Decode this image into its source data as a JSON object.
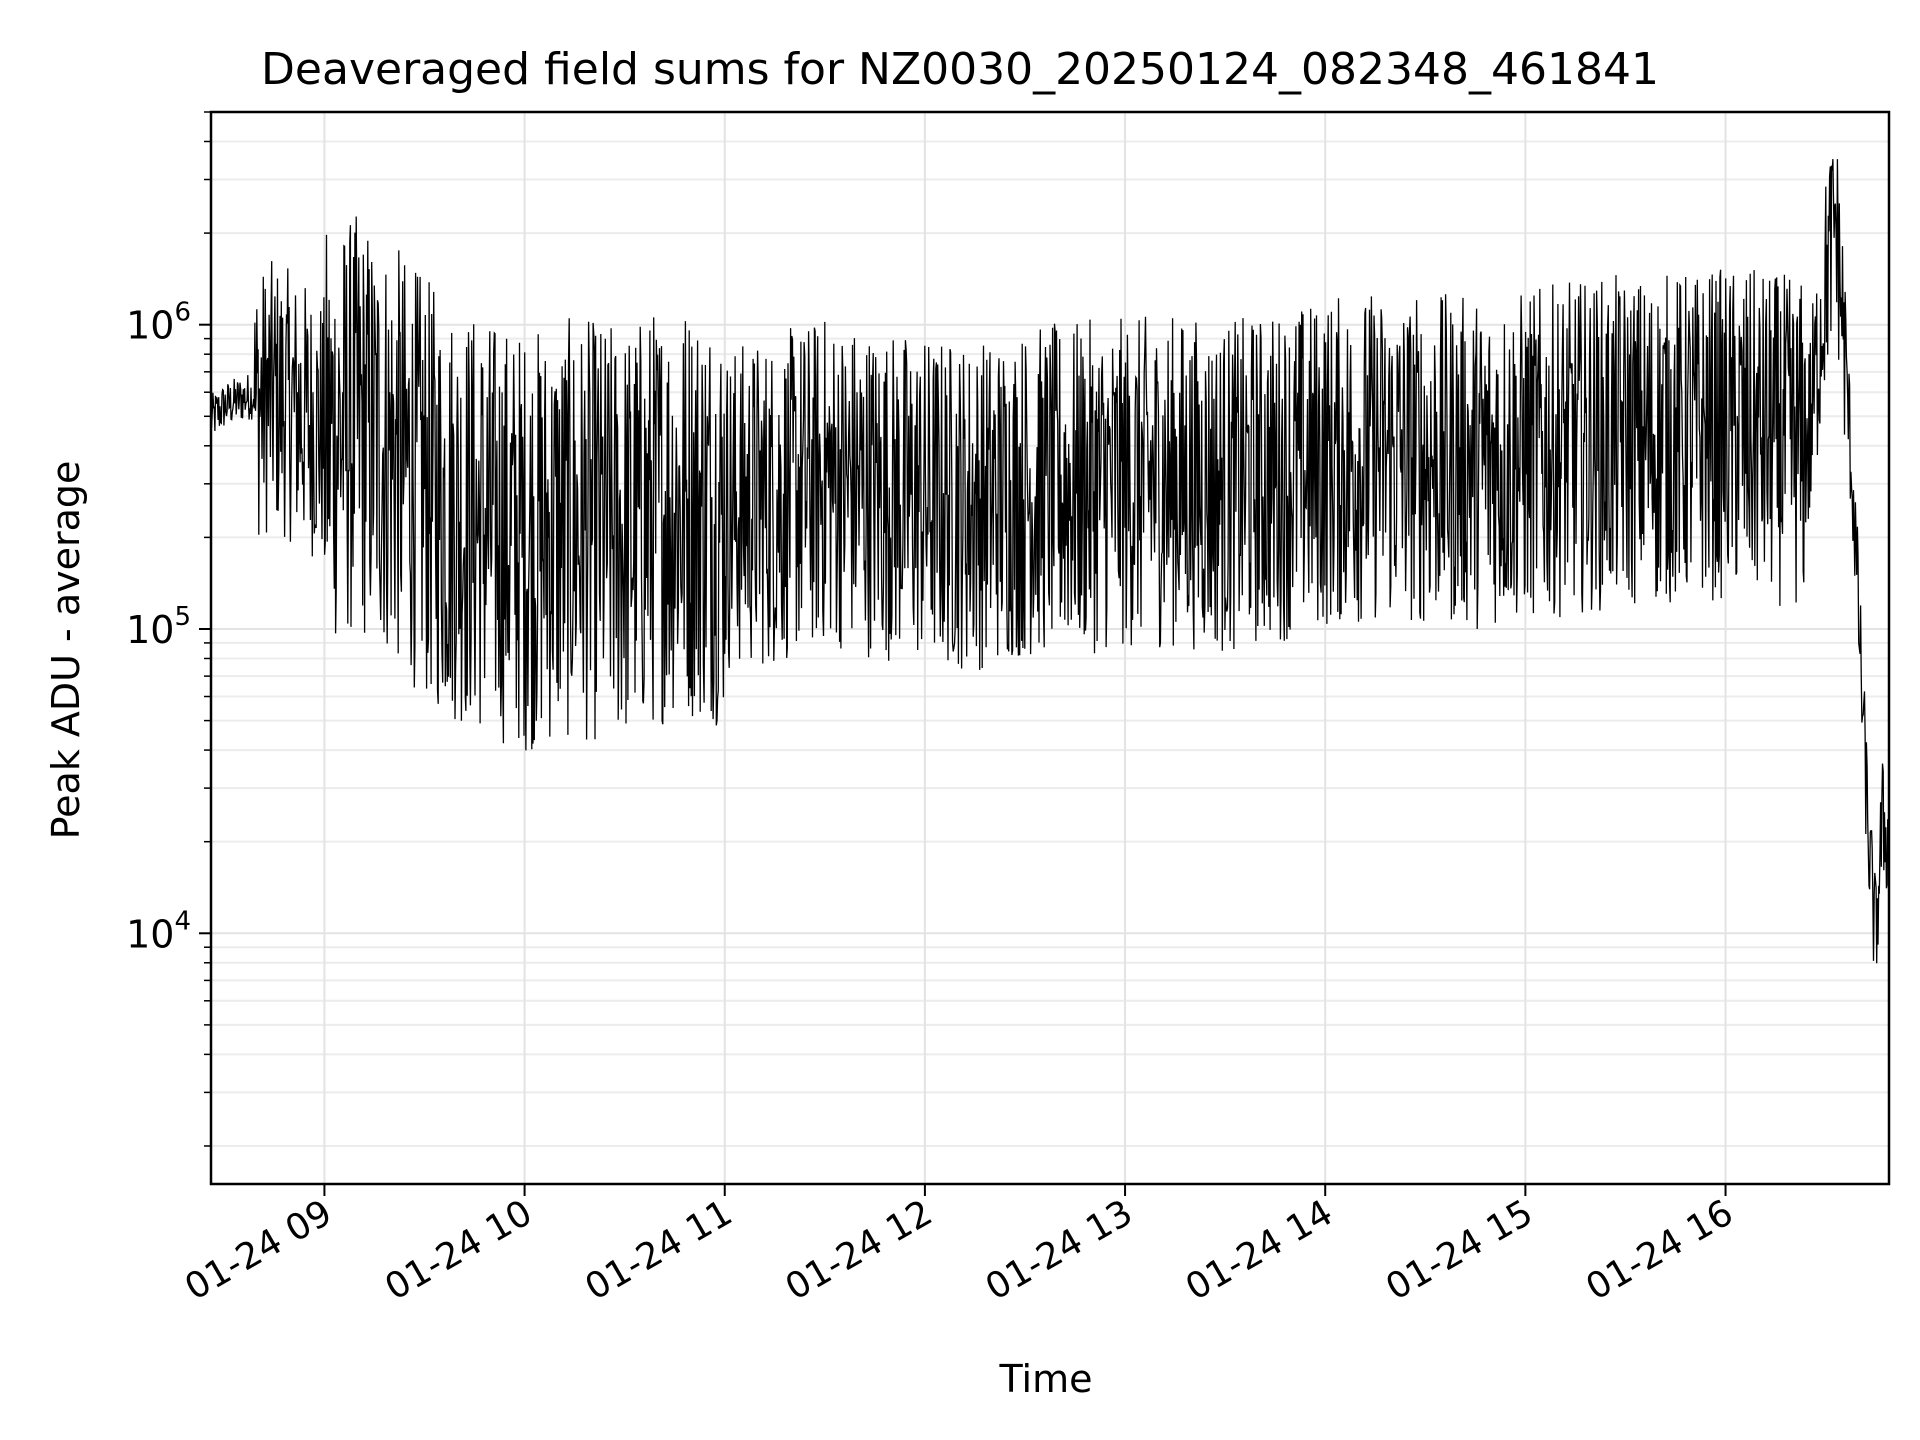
{
  "chart_data": {
    "type": "line",
    "title": "Deaveraged field sums for NZ0030_20250124_082348_461841",
    "xlabel": "Time",
    "ylabel": "Peak ADU - average",
    "yscale": "log",
    "ylim": [
      1500,
      5000000
    ],
    "xlim": [
      "2025-01-24 08:26",
      "2025-01-24 16:49"
    ],
    "x_ticks": [
      "01-24 09",
      "01-24 10",
      "01-24 11",
      "01-24 12",
      "01-24 13",
      "01-24 14",
      "01-24 15",
      "01-24 16"
    ],
    "y_ticks": [
      {
        "base": "10",
        "exp": "4",
        "value": 10000
      },
      {
        "base": "10",
        "exp": "5",
        "value": 100000
      },
      {
        "base": "10",
        "exp": "6",
        "value": 1000000
      }
    ],
    "grid": true,
    "line_color": "#000000",
    "series": [
      {
        "x": [
          "2025-01-24 08:26",
          "2025-01-24 08:30",
          "2025-01-24 08:35",
          "2025-01-24 08:39",
          "2025-01-24 08:45",
          "2025-01-24 09:00",
          "2025-01-24 09:10",
          "2025-01-24 09:20",
          "2025-01-24 09:35",
          "2025-01-24 09:50",
          "2025-01-24 10:00",
          "2025-01-24 10:15",
          "2025-01-24 10:30",
          "2025-01-24 10:45",
          "2025-01-24 11:00",
          "2025-01-24 11:15",
          "2025-01-24 11:30",
          "2025-01-24 11:45",
          "2025-01-24 12:00",
          "2025-01-24 12:15",
          "2025-01-24 12:30",
          "2025-01-24 12:45",
          "2025-01-24 13:00",
          "2025-01-24 13:15",
          "2025-01-24 13:30",
          "2025-01-24 13:45",
          "2025-01-24 14:00",
          "2025-01-24 14:15",
          "2025-01-24 14:30",
          "2025-01-24 14:45",
          "2025-01-24 15:00",
          "2025-01-24 15:15",
          "2025-01-24 15:30",
          "2025-01-24 15:45",
          "2025-01-24 16:00",
          "2025-01-24 16:15",
          "2025-01-24 16:25",
          "2025-01-24 16:30",
          "2025-01-24 16:33",
          "2025-01-24 16:36",
          "2025-01-24 16:39",
          "2025-01-24 16:41",
          "2025-01-24 16:43",
          "2025-01-24 16:45",
          "2025-01-24 16:47",
          "2025-01-24 16:49"
        ],
        "y": [
          500000,
          550000,
          580000,
          600000,
          650000,
          500000,
          550000,
          450000,
          300000,
          250000,
          230000,
          250000,
          240000,
          300000,
          280000,
          300000,
          350000,
          320000,
          300000,
          290000,
          320000,
          330000,
          340000,
          350000,
          330000,
          360000,
          400000,
          420000,
          410000,
          400000,
          420000,
          450000,
          470000,
          480000,
          500000,
          480000,
          450000,
          1500000,
          2500000,
          800000,
          200000,
          60000,
          20000,
          10000,
          25000,
          20000
        ]
      }
    ]
  }
}
